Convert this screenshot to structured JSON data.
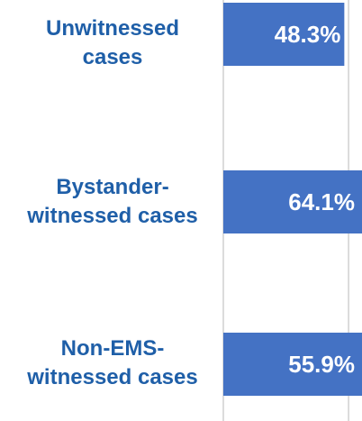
{
  "chart_data": {
    "type": "barh",
    "categories": [
      "Unwitnessed cases",
      "Bystander-witnessed cases",
      "Non-EMS-witnessed cases"
    ],
    "values": [
      48.3,
      64.1,
      55.9
    ],
    "value_labels": [
      "48.3%",
      "64.1%",
      "55.9%"
    ],
    "color": "#4472c4",
    "xlim": [
      0,
      55
    ],
    "xticks": [
      0,
      50
    ],
    "grid": true
  }
}
